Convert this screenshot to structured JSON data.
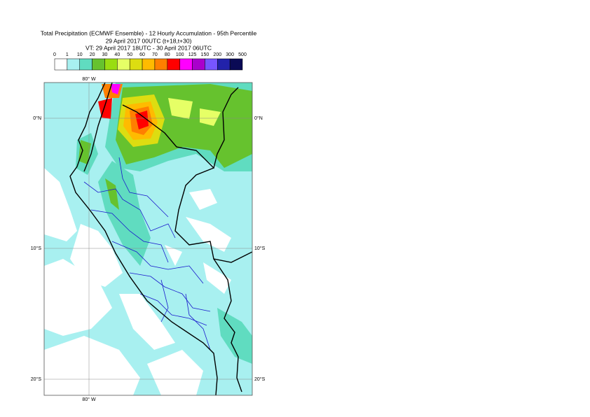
{
  "header": {
    "title": "Total Precipitation (ECMWF Ensemble) - 12 Hourly Accumulation - 95th Percentile",
    "run": "29 April 2017 00UTC (t+18,t+30)",
    "valid": "VT: 29 April 2017 18UTC - 30 April 2017 06UTC"
  },
  "legend": {
    "thresholds": [
      0,
      1,
      10,
      20,
      30,
      40,
      50,
      60,
      70,
      80,
      100,
      125,
      150,
      200,
      300,
      500
    ],
    "colors": [
      "#ffffff",
      "#a8f0f0",
      "#60dcc0",
      "#66c22e",
      "#99dd11",
      "#e6ff66",
      "#dddd11",
      "#ffbb00",
      "#ff7f00",
      "#ff0000",
      "#ff00ff",
      "#aa00cc",
      "#7755ff",
      "#2222aa",
      "#0a0a55"
    ]
  },
  "map": {
    "lon_label": "80° W",
    "lat_labels": [
      "0°N",
      "10°S",
      "20°S"
    ]
  }
}
